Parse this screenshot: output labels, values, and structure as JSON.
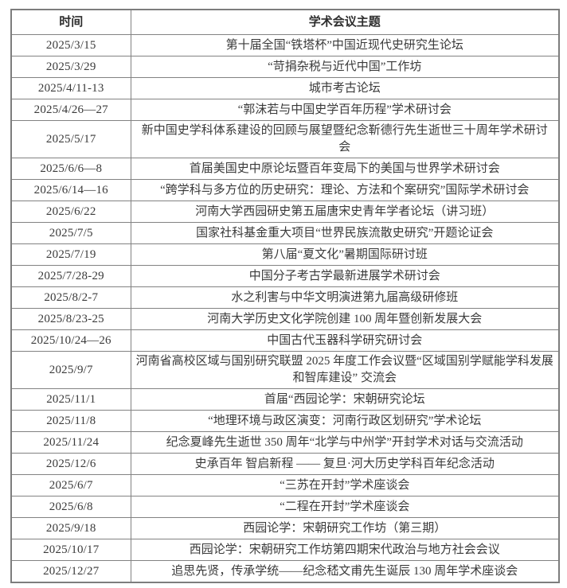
{
  "colors": {
    "background": "#ffffff",
    "border": "#828282",
    "text": "#3a3a3a"
  },
  "table": {
    "headers": {
      "time": "时间",
      "topic": "学术会议主题"
    },
    "rows": [
      {
        "date": "2025/3/15",
        "topic": "第十届全国“铁塔杯”中国近现代史研究生论坛"
      },
      {
        "date": "2025/3/29",
        "topic": "“苛捐杂税与近代中国”工作坊"
      },
      {
        "date": "2025/4/11-13",
        "topic": "城市考古论坛"
      },
      {
        "date": "2025/4/26—27",
        "topic": "“郭沫若与中国史学百年历程”学术研讨会"
      },
      {
        "date": "2025/5/17",
        "topic": "新中国史学科体系建设的回顾与展望暨纪念靳德行先生逝世三十周年学术研讨会"
      },
      {
        "date": "2025/6/6—8",
        "topic": "首届美国史中原论坛暨百年变局下的美国与世界学术研讨会"
      },
      {
        "date": "2025/6/14—16",
        "topic": "“跨学科与多方位的历史研究：理论、方法和个案研究”国际学术研讨会"
      },
      {
        "date": "2025/6/22",
        "topic": "河南大学西园研史第五届唐宋史青年学者论坛（讲习班）"
      },
      {
        "date": "2025/7/5",
        "topic": "国家社科基金重大项目“世界民族流散史研究”开题论证会"
      },
      {
        "date": "2025/7/19",
        "topic": "第八届“夏文化”暑期国际研讨班"
      },
      {
        "date": "2025/7/28-29",
        "topic": "中国分子考古学最新进展学术研讨会"
      },
      {
        "date": "2025/8/2-7",
        "topic": "水之利害与中华文明演进第九届高级研修班"
      },
      {
        "date": "2025/8/23-25",
        "topic": "河南大学历史文化学院创建 100 周年暨创新发展大会"
      },
      {
        "date": "2025/10/24—26",
        "topic": "中国古代玉器科学研究研讨会"
      },
      {
        "date": "2025/9/7",
        "topic": "河南省高校区域与国别研究联盟 2025 年度工作会议暨“区域国别学赋能学科发展和智库建设” 交流会"
      },
      {
        "date": "2025/11/1",
        "topic": "首届“西园论学：宋朝研究论坛"
      },
      {
        "date": "2025/11/8",
        "topic": "“地理环境与政区演变：河南行政区划研究”学术论坛"
      },
      {
        "date": "2025/11/24",
        "topic": "纪念夏峰先生逝世 350 周年“北学与中州学”开封学术对话与交流活动"
      },
      {
        "date": "2025/12/6",
        "topic": "史承百年 智启新程 —— 复旦·河大历史学科百年纪念活动"
      },
      {
        "date": "2025/6/7",
        "topic": "“三苏在开封”学术座谈会"
      },
      {
        "date": "2025/6/8",
        "topic": "“二程在开封”学术座谈会"
      },
      {
        "date": "2025/9/18",
        "topic": "西园论学：宋朝研究工作坊（第三期）"
      },
      {
        "date": "2025/10/17",
        "topic": "西园论学：宋朝研究工作坊第四期宋代政治与地方社会会议"
      },
      {
        "date": "2025/12/27",
        "topic": "追思先贤，传承学统——纪念嵇文甫先生诞辰 130 周年学术座谈会"
      }
    ]
  }
}
